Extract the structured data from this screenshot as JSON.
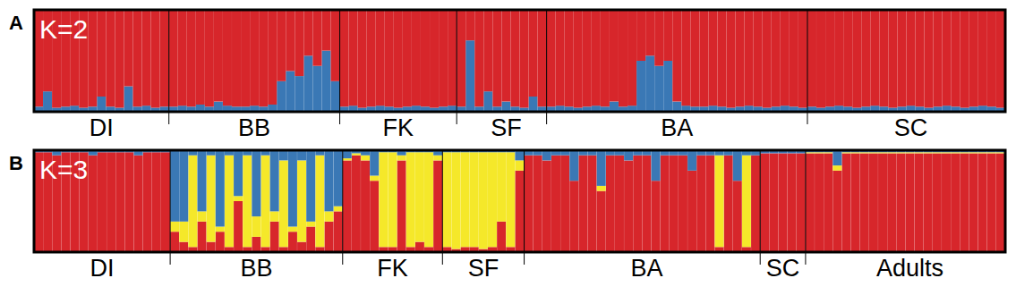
{
  "chart_data": [
    {
      "type": "bar",
      "panel": "A",
      "title": "K=2",
      "stacked": true,
      "tick_labels": "x",
      "ylim": [
        0,
        1
      ],
      "categories": [
        null,
        null,
        null,
        null,
        null,
        null,
        null,
        "DI",
        null,
        null,
        null,
        null,
        null,
        null,
        null,
        null,
        null,
        null,
        null,
        null,
        null,
        null,
        null,
        null,
        "BB",
        null,
        null,
        null,
        null,
        null,
        null,
        null,
        null,
        null,
        null,
        null,
        null,
        null,
        null,
        null,
        "FK",
        null,
        null,
        null,
        null,
        null,
        null,
        null,
        null,
        null,
        null,
        null,
        "SF",
        null,
        null,
        null,
        null,
        null,
        null,
        null,
        null,
        null,
        null,
        null,
        null,
        null,
        null,
        null,
        null,
        null,
        null,
        "BA",
        null,
        null,
        null,
        null,
        null,
        null,
        null,
        null,
        null,
        null,
        null,
        null,
        null,
        null,
        null,
        null,
        null,
        null,
        null,
        null,
        null,
        null,
        null,
        null,
        null,
        "SC",
        null,
        null,
        null,
        null,
        null,
        null,
        null,
        null,
        null,
        null
      ],
      "group_sizes": [
        15,
        19,
        13,
        10,
        29,
        22
      ],
      "series": [
        {
          "color": "#3a78b5",
          "values": [
            0.05,
            0.2,
            0.04,
            0.05,
            0.06,
            0.04,
            0.05,
            0.15,
            0.05,
            0.04,
            0.25,
            0.05,
            0.06,
            0.04,
            0.05,
            0.05,
            0.06,
            0.05,
            0.07,
            0.05,
            0.1,
            0.06,
            0.05,
            0.05,
            0.06,
            0.05,
            0.07,
            0.3,
            0.4,
            0.35,
            0.55,
            0.45,
            0.6,
            0.3,
            0.05,
            0.06,
            0.04,
            0.05,
            0.06,
            0.05,
            0.04,
            0.05,
            0.06,
            0.05,
            0.04,
            0.05,
            0.06,
            0.05,
            0.7,
            0.05,
            0.2,
            0.05,
            0.1,
            0.05,
            0.04,
            0.15,
            0.05,
            0.05,
            0.06,
            0.05,
            0.04,
            0.05,
            0.06,
            0.05,
            0.1,
            0.05,
            0.06,
            0.5,
            0.55,
            0.45,
            0.5,
            0.1,
            0.06,
            0.05,
            0.05,
            0.06,
            0.05,
            0.04,
            0.05,
            0.06,
            0.05,
            0.04,
            0.05,
            0.06,
            0.05,
            0.04,
            0.05,
            0.04,
            0.05,
            0.06,
            0.05,
            0.04,
            0.05,
            0.06,
            0.05,
            0.04,
            0.05,
            0.06,
            0.05,
            0.04,
            0.05,
            0.06,
            0.05,
            0.04,
            0.05,
            0.06,
            0.05,
            0.04
          ]
        },
        {
          "color": "#d7262b",
          "values": [
            0.95,
            0.8,
            0.96,
            0.95,
            0.94,
            0.96,
            0.95,
            0.85,
            0.95,
            0.96,
            0.75,
            0.95,
            0.94,
            0.96,
            0.95,
            0.95,
            0.94,
            0.95,
            0.93,
            0.95,
            0.9,
            0.94,
            0.95,
            0.95,
            0.94,
            0.95,
            0.93,
            0.7,
            0.6,
            0.65,
            0.45,
            0.55,
            0.4,
            0.7,
            0.95,
            0.94,
            0.96,
            0.95,
            0.94,
            0.95,
            0.96,
            0.95,
            0.94,
            0.95,
            0.96,
            0.95,
            0.94,
            0.95,
            0.3,
            0.95,
            0.8,
            0.95,
            0.9,
            0.95,
            0.96,
            0.85,
            0.95,
            0.95,
            0.94,
            0.95,
            0.96,
            0.95,
            0.94,
            0.95,
            0.9,
            0.95,
            0.94,
            0.5,
            0.45,
            0.55,
            0.5,
            0.9,
            0.94,
            0.95,
            0.95,
            0.94,
            0.95,
            0.96,
            0.95,
            0.94,
            0.95,
            0.96,
            0.95,
            0.94,
            0.95,
            0.96,
            0.95,
            0.96,
            0.95,
            0.94,
            0.95,
            0.96,
            0.95,
            0.94,
            0.95,
            0.96,
            0.95,
            0.94,
            0.95,
            0.96,
            0.95,
            0.94,
            0.95,
            0.96,
            0.95,
            0.94,
            0.95,
            0.96
          ]
        }
      ]
    },
    {
      "type": "bar",
      "panel": "B",
      "title": "K=3",
      "stacked": true,
      "tick_labels": "x",
      "ylim": [
        0,
        1
      ],
      "categories": [
        null,
        null,
        null,
        null,
        null,
        null,
        null,
        "DI",
        null,
        null,
        null,
        null,
        null,
        null,
        null,
        null,
        null,
        null,
        null,
        null,
        null,
        null,
        null,
        null,
        "BB",
        null,
        null,
        null,
        null,
        null,
        null,
        null,
        null,
        null,
        null,
        null,
        null,
        null,
        null,
        "FK",
        null,
        null,
        null,
        null,
        null,
        null,
        null,
        null,
        null,
        "SF",
        null,
        null,
        null,
        null,
        null,
        null,
        null,
        null,
        null,
        null,
        null,
        null,
        null,
        null,
        null,
        null,
        null,
        "BA",
        null,
        null,
        null,
        null,
        null,
        null,
        null,
        null,
        null,
        null,
        null,
        null,
        null,
        null,
        "SC",
        null,
        null,
        null,
        null,
        null,
        null,
        null,
        null,
        null,
        null,
        null,
        null,
        null,
        "Adults",
        null,
        null,
        null,
        null,
        null,
        null,
        null,
        null,
        null,
        null
      ],
      "group_sizes": [
        15,
        19,
        11,
        9,
        26,
        5,
        22
      ],
      "series": [
        {
          "color": "#d7262b",
          "values": [
            0.98,
            0.98,
            0.95,
            0.98,
            0.98,
            0.98,
            0.95,
            0.98,
            0.98,
            0.98,
            0.98,
            0.95,
            0.98,
            0.98,
            0.98,
            0.2,
            0.1,
            0.05,
            0.3,
            0.1,
            0.2,
            0.05,
            0.5,
            0.05,
            0.15,
            0.05,
            0.3,
            0.05,
            0.2,
            0.1,
            0.25,
            0.05,
            0.3,
            0.4,
            0.9,
            0.95,
            0.9,
            0.7,
            0.05,
            0.05,
            0.9,
            0.05,
            0.1,
            0.05,
            0.9,
            0.05,
            0.03,
            0.05,
            0.05,
            0.03,
            0.05,
            0.3,
            0.05,
            0.8,
            0.95,
            0.95,
            0.9,
            0.95,
            0.95,
            0.7,
            0.95,
            0.95,
            0.6,
            0.95,
            0.95,
            0.9,
            0.95,
            0.95,
            0.7,
            0.95,
            0.95,
            0.95,
            0.8,
            0.95,
            0.95,
            0.05,
            0.95,
            0.7,
            0.05,
            0.95,
            0.97,
            0.97,
            0.97,
            0.97,
            0.97,
            0.97,
            0.97,
            0.97,
            0.8,
            0.97,
            0.97,
            0.97,
            0.97,
            0.97,
            0.97,
            0.97,
            0.97,
            0.97,
            0.97,
            0.97,
            0.97,
            0.97,
            0.97,
            0.97,
            0.97,
            0.97,
            0.97
          ]
        },
        {
          "color": "#f5e82a",
          "values": [
            0,
            0,
            0,
            0,
            0,
            0,
            0,
            0,
            0,
            0,
            0,
            0,
            0,
            0,
            0,
            0.1,
            0.2,
            0.9,
            0.1,
            0.85,
            0.05,
            0.9,
            0.05,
            0.9,
            0.2,
            0.9,
            0.1,
            0.85,
            0.05,
            0.8,
            0.05,
            0.9,
            0.1,
            0.05,
            0.02,
            0.02,
            0.05,
            0.05,
            0.93,
            0.93,
            0.05,
            0.93,
            0.88,
            0.93,
            0.05,
            0.93,
            0.95,
            0.93,
            0.93,
            0.95,
            0.93,
            0.68,
            0.93,
            0.1,
            0,
            0,
            0,
            0,
            0,
            0,
            0,
            0,
            0.05,
            0,
            0,
            0,
            0,
            0,
            0,
            0,
            0,
            0,
            0,
            0,
            0,
            0.9,
            0,
            0,
            0.9,
            0,
            0,
            0,
            0,
            0,
            0,
            0.01,
            0.01,
            0.01,
            0.05,
            0.01,
            0.01,
            0.01,
            0.01,
            0.01,
            0.01,
            0.01,
            0.01,
            0.01,
            0.01,
            0.01,
            0.01,
            0.01,
            0.01,
            0.01,
            0.01,
            0.01,
            0.01
          ]
        },
        {
          "color": "#3a78b5",
          "values": [
            0.02,
            0.02,
            0.05,
            0.02,
            0.02,
            0.02,
            0.05,
            0.02,
            0.02,
            0.02,
            0.02,
            0.05,
            0.02,
            0.02,
            0.02,
            0.7,
            0.7,
            0.05,
            0.6,
            0.05,
            0.75,
            0.05,
            0.45,
            0.05,
            0.65,
            0.05,
            0.6,
            0.1,
            0.75,
            0.1,
            0.7,
            0.05,
            0.6,
            0.55,
            0.08,
            0.03,
            0.05,
            0.25,
            0.02,
            0.02,
            0.05,
            0.02,
            0.02,
            0.02,
            0.05,
            0.02,
            0.02,
            0.02,
            0.02,
            0.02,
            0.02,
            0.02,
            0.02,
            0.1,
            0.05,
            0.05,
            0.1,
            0.05,
            0.05,
            0.3,
            0.05,
            0.05,
            0.35,
            0.05,
            0.05,
            0.1,
            0.05,
            0.05,
            0.3,
            0.05,
            0.05,
            0.05,
            0.2,
            0.05,
            0.05,
            0.05,
            0.05,
            0.3,
            0.05,
            0.05,
            0.03,
            0.03,
            0.03,
            0.03,
            0.03,
            0.02,
            0.02,
            0.02,
            0.15,
            0.02,
            0.02,
            0.02,
            0.02,
            0.02,
            0.02,
            0.02,
            0.02,
            0.02,
            0.02,
            0.02,
            0.02,
            0.02,
            0.02,
            0.02,
            0.02,
            0.02,
            0.02
          ]
        }
      ]
    }
  ]
}
